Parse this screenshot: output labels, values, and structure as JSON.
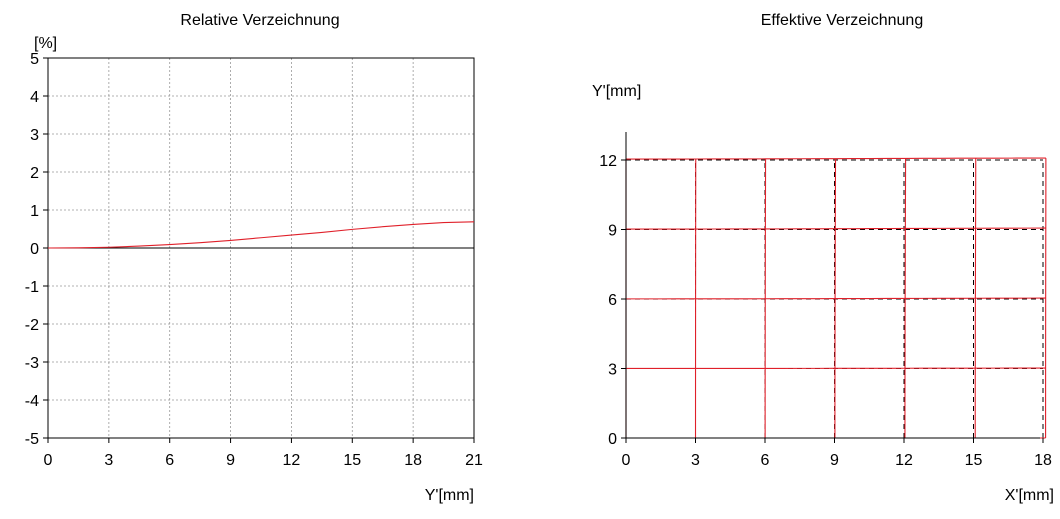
{
  "chart_data": [
    {
      "type": "line",
      "title": "Relative Verzeichnung",
      "ylabel": "[%]",
      "xlabel": "Y'[mm]",
      "xlim": [
        0,
        21
      ],
      "ylim": [
        -5,
        5
      ],
      "x_ticks": [
        "0",
        "3",
        "6",
        "9",
        "12",
        "15",
        "18",
        "21"
      ],
      "y_ticks": [
        "5",
        "4",
        "3",
        "2",
        "1",
        "0",
        "-1",
        "-2",
        "-3",
        "-4",
        "-5"
      ],
      "grid": true,
      "colors": {
        "series": "#e0202a",
        "grid": "#999999"
      },
      "series": [
        {
          "x": [
            0,
            1.5,
            3,
            4.5,
            6,
            7.5,
            9,
            10.5,
            12,
            13.5,
            15,
            16.5,
            18,
            19.5,
            21
          ],
          "y": [
            0,
            0.004,
            0.02,
            0.05,
            0.09,
            0.14,
            0.2,
            0.27,
            0.34,
            0.41,
            0.49,
            0.56,
            0.62,
            0.67,
            0.69
          ]
        }
      ]
    },
    {
      "type": "line",
      "title": "Effektive Verzeichnung",
      "ylabel": "Y'[mm]",
      "xlabel": "X'[mm]",
      "xlim": [
        0,
        18
      ],
      "ylim": [
        0,
        12
      ],
      "x_ticks": [
        "0",
        "3",
        "6",
        "9",
        "12",
        "15",
        "18"
      ],
      "y_ticks": [
        "0",
        "3",
        "6",
        "9",
        "12"
      ],
      "grid_x": [
        0,
        3,
        6,
        9,
        12,
        15,
        18
      ],
      "grid_y": [
        0,
        3,
        6,
        9,
        12
      ],
      "distortion_percent": {
        "x": [
          0,
          3,
          6,
          9,
          12,
          15,
          18,
          21
        ],
        "y": [
          0,
          0.02,
          0.09,
          0.2,
          0.34,
          0.49,
          0.62,
          0.69
        ]
      },
      "colors": {
        "reference": "#000000",
        "distorted": "#e0202a"
      }
    }
  ]
}
